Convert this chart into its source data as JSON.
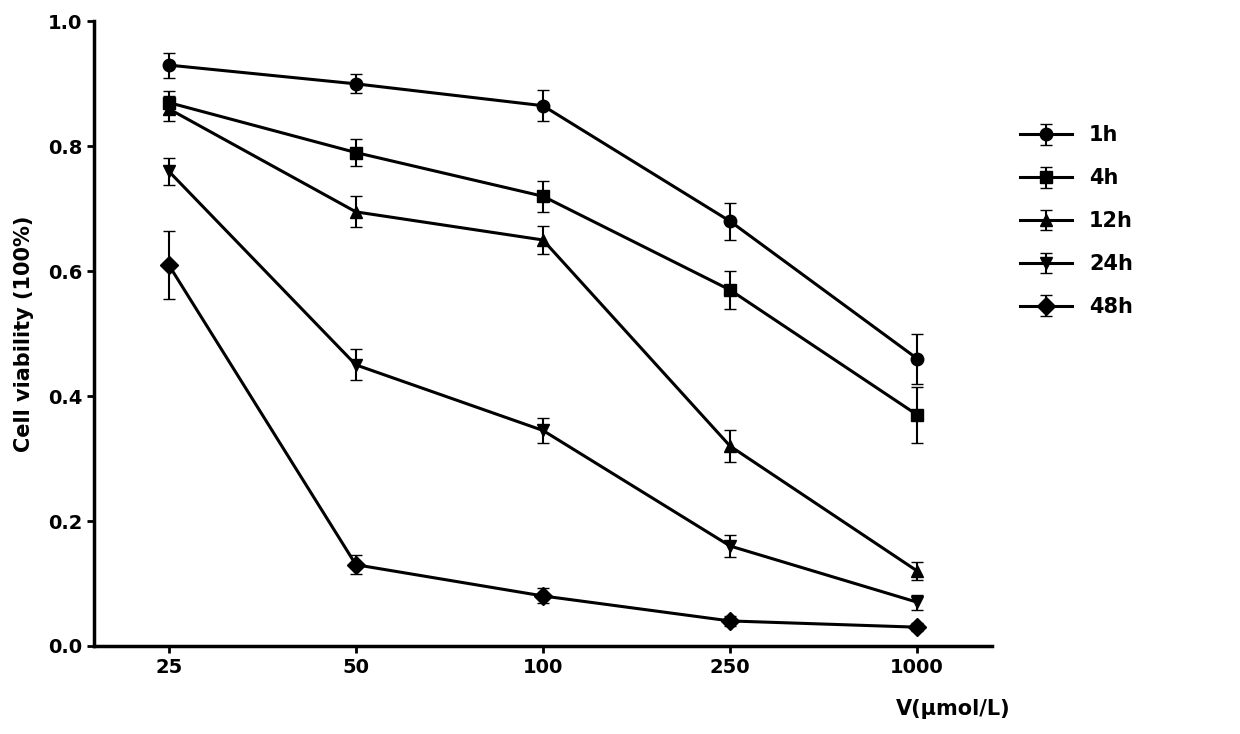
{
  "x_labels": [
    "25",
    "50",
    "100",
    "250",
    "1000"
  ],
  "series": [
    {
      "label": "1h",
      "y": [
        0.93,
        0.9,
        0.865,
        0.68,
        0.46
      ],
      "yerr": [
        0.02,
        0.015,
        0.025,
        0.03,
        0.04
      ],
      "marker": "o",
      "color": "#000000"
    },
    {
      "label": "4h",
      "y": [
        0.87,
        0.79,
        0.72,
        0.57,
        0.37
      ],
      "yerr": [
        0.018,
        0.022,
        0.025,
        0.03,
        0.045
      ],
      "marker": "s",
      "color": "#000000"
    },
    {
      "label": "12h",
      "y": [
        0.86,
        0.695,
        0.65,
        0.32,
        0.12
      ],
      "yerr": [
        0.02,
        0.025,
        0.022,
        0.025,
        0.015
      ],
      "marker": "^",
      "color": "#000000"
    },
    {
      "label": "24h",
      "y": [
        0.76,
        0.45,
        0.345,
        0.16,
        0.07
      ],
      "yerr": [
        0.022,
        0.025,
        0.02,
        0.018,
        0.012
      ],
      "marker": "v",
      "color": "#000000"
    },
    {
      "label": "48h",
      "y": [
        0.61,
        0.13,
        0.08,
        0.04,
        0.03
      ],
      "yerr": [
        0.055,
        0.015,
        0.012,
        0.008,
        0.006
      ],
      "marker": "D",
      "color": "#000000"
    }
  ],
  "xlabel": "V(μmol/L)",
  "ylabel": "Cell viability (100%)",
  "ylim": [
    0.0,
    1.0
  ],
  "yticks": [
    0.0,
    0.2,
    0.4,
    0.6,
    0.8,
    1.0
  ],
  "background_color": "#ffffff",
  "legend_fontsize": 15,
  "axis_label_fontsize": 15,
  "tick_fontsize": 14,
  "linewidth": 2.2,
  "markersize": 9,
  "capsize": 4
}
